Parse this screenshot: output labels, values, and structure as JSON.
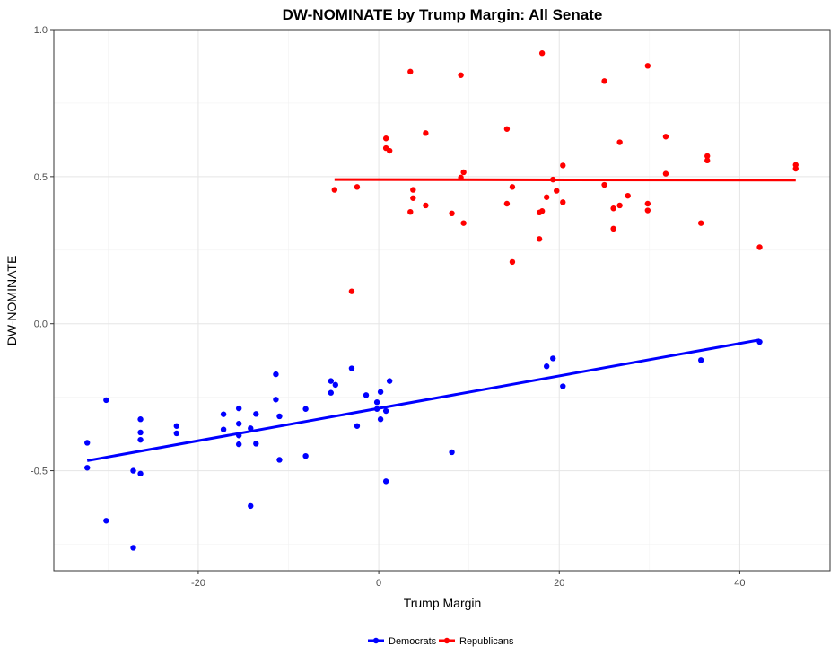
{
  "chart_data": {
    "type": "scatter",
    "title": "DW-NOMINATE by Trump Margin: All Senate",
    "xlabel": "Trump Margin",
    "ylabel": "DW-NOMINATE",
    "xlim": [
      -36,
      50
    ],
    "ylim": [
      -0.84,
      1.0
    ],
    "x_ticks": [
      -20,
      0,
      20,
      40
    ],
    "x_tick_labels": [
      "-20",
      "0",
      "20",
      "40"
    ],
    "y_ticks": [
      -0.5,
      0.0,
      0.5,
      1.0
    ],
    "y_tick_labels": [
      "-0.5",
      "0.0",
      "0.5",
      "1.0"
    ],
    "grid": true,
    "legend_position": "bottom",
    "series": [
      {
        "name": "Democrats",
        "color": "#0000ff",
        "points": [
          [
            -32.3,
            -0.405
          ],
          [
            -32.3,
            -0.49
          ],
          [
            -30.2,
            -0.26
          ],
          [
            -30.2,
            -0.67
          ],
          [
            -27.2,
            -0.5
          ],
          [
            -27.2,
            -0.762
          ],
          [
            -26.4,
            -0.325
          ],
          [
            -26.4,
            -0.37
          ],
          [
            -26.4,
            -0.395
          ],
          [
            -26.4,
            -0.51
          ],
          [
            -22.4,
            -0.348
          ],
          [
            -22.4,
            -0.373
          ],
          [
            -17.2,
            -0.308
          ],
          [
            -17.2,
            -0.36
          ],
          [
            -15.5,
            -0.288
          ],
          [
            -15.5,
            -0.34
          ],
          [
            -15.5,
            -0.38
          ],
          [
            -15.5,
            -0.41
          ],
          [
            -14.2,
            -0.356
          ],
          [
            -14.2,
            -0.62
          ],
          [
            -13.6,
            -0.307
          ],
          [
            -13.6,
            -0.408
          ],
          [
            -11.4,
            -0.172
          ],
          [
            -11.4,
            -0.258
          ],
          [
            -11.0,
            -0.315
          ],
          [
            -11.0,
            -0.463
          ],
          [
            -8.1,
            -0.29
          ],
          [
            -8.1,
            -0.45
          ],
          [
            -5.3,
            -0.195
          ],
          [
            -5.3,
            -0.235
          ],
          [
            -4.8,
            -0.208
          ],
          [
            -3.0,
            -0.152
          ],
          [
            -2.4,
            -0.348
          ],
          [
            -1.4,
            -0.243
          ],
          [
            -0.2,
            -0.267
          ],
          [
            -0.2,
            -0.29
          ],
          [
            0.2,
            -0.232
          ],
          [
            0.2,
            -0.325
          ],
          [
            0.8,
            -0.297
          ],
          [
            0.8,
            -0.536
          ],
          [
            1.2,
            -0.195
          ],
          [
            8.1,
            -0.437
          ],
          [
            18.6,
            -0.145
          ],
          [
            19.3,
            -0.118
          ],
          [
            20.4,
            -0.213
          ],
          [
            35.7,
            -0.124
          ],
          [
            42.2,
            -0.062
          ]
        ],
        "fit": {
          "x": [
            -32.3,
            42.2
          ],
          "y": [
            -0.466,
            -0.055
          ]
        }
      },
      {
        "name": "Republicans",
        "color": "#ff0000",
        "points": [
          [
            -4.9,
            0.455
          ],
          [
            -3.0,
            0.11
          ],
          [
            -2.4,
            0.465
          ],
          [
            0.8,
            0.63
          ],
          [
            0.8,
            0.597
          ],
          [
            1.2,
            0.588
          ],
          [
            3.5,
            0.857
          ],
          [
            3.5,
            0.38
          ],
          [
            3.8,
            0.455
          ],
          [
            3.8,
            0.427
          ],
          [
            5.2,
            0.648
          ],
          [
            5.2,
            0.402
          ],
          [
            8.1,
            0.375
          ],
          [
            9.1,
            0.845
          ],
          [
            9.1,
            0.497
          ],
          [
            9.4,
            0.515
          ],
          [
            9.4,
            0.342
          ],
          [
            14.2,
            0.662
          ],
          [
            14.2,
            0.408
          ],
          [
            14.8,
            0.465
          ],
          [
            14.8,
            0.21
          ],
          [
            17.8,
            0.288
          ],
          [
            17.8,
            0.378
          ],
          [
            18.1,
            0.92
          ],
          [
            18.1,
            0.383
          ],
          [
            18.6,
            0.43
          ],
          [
            19.3,
            0.49
          ],
          [
            19.7,
            0.452
          ],
          [
            20.4,
            0.538
          ],
          [
            20.4,
            0.413
          ],
          [
            25.0,
            0.825
          ],
          [
            25.0,
            0.472
          ],
          [
            26.0,
            0.392
          ],
          [
            26.0,
            0.323
          ],
          [
            26.7,
            0.617
          ],
          [
            26.7,
            0.402
          ],
          [
            27.6,
            0.435
          ],
          [
            29.8,
            0.877
          ],
          [
            29.8,
            0.408
          ],
          [
            29.8,
            0.385
          ],
          [
            31.8,
            0.636
          ],
          [
            31.8,
            0.51
          ],
          [
            35.7,
            0.342
          ],
          [
            36.4,
            0.57
          ],
          [
            36.4,
            0.555
          ],
          [
            42.2,
            0.26
          ],
          [
            46.2,
            0.54
          ],
          [
            46.2,
            0.527
          ]
        ],
        "fit": {
          "x": [
            -4.9,
            46.2
          ],
          "y": [
            0.49,
            0.488
          ]
        }
      }
    ]
  }
}
